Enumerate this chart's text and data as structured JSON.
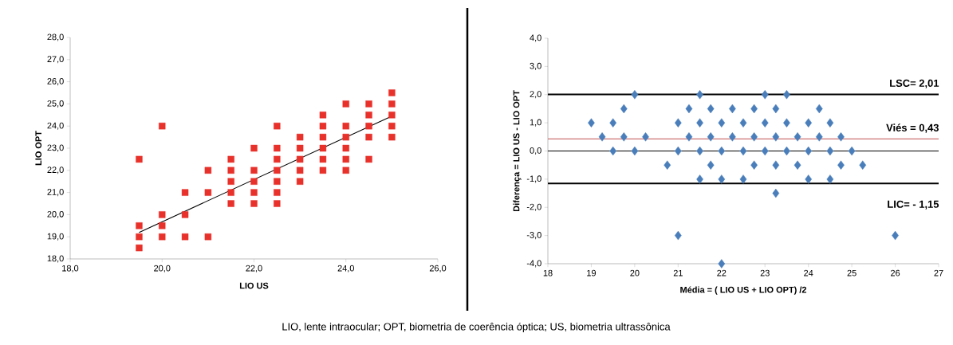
{
  "chart_data": [
    {
      "type": "scatter",
      "xlabel": "LIO US",
      "ylabel": "LIO OPT",
      "xlim": [
        18,
        26
      ],
      "ylim": [
        18,
        28
      ],
      "xticks": [
        {
          "value": 18,
          "label": "18,0"
        },
        {
          "value": 20,
          "label": "20,0"
        },
        {
          "value": 22,
          "label": "22,0"
        },
        {
          "value": 24,
          "label": "24,0"
        },
        {
          "value": 26,
          "label": "26,0"
        }
      ],
      "yticks": [
        {
          "value": 18,
          "label": "18,0"
        },
        {
          "value": 19,
          "label": "19,0"
        },
        {
          "value": 20,
          "label": "20,0"
        },
        {
          "value": 21,
          "label": "21,0"
        },
        {
          "value": 22,
          "label": "22,0"
        },
        {
          "value": 23,
          "label": "23,0"
        },
        {
          "value": 24,
          "label": "24,0"
        },
        {
          "value": 25,
          "label": "25,0"
        },
        {
          "value": 26,
          "label": "26,0"
        },
        {
          "value": 27,
          "label": "27,0"
        },
        {
          "value": 28,
          "label": "28,0"
        }
      ],
      "grid": false,
      "marker": "square",
      "annotations": [
        "LIO, lente intraocular; OPT, biometria de coerência óptica; US, biometria ultrassônica"
      ],
      "series": [
        {
          "color": "#e8312a",
          "x": [
            19.5,
            19.5,
            19.5,
            19.5,
            20,
            20,
            20,
            20,
            20.5,
            20.5,
            20.5,
            21,
            21,
            21,
            21.5,
            21.5,
            21.5,
            21.5,
            21.5,
            22,
            22,
            22,
            22,
            22,
            22.5,
            22.5,
            22.5,
            22.5,
            22.5,
            22.5,
            22.5,
            23,
            23,
            23,
            23,
            23,
            23.5,
            23.5,
            23.5,
            23.5,
            23.5,
            23.5,
            24,
            24,
            24,
            24,
            24,
            24,
            24.5,
            24.5,
            24.5,
            24.5,
            24.5,
            25,
            25,
            25,
            25,
            25
          ],
          "values": [
            22.5,
            19.5,
            19,
            18.5,
            24,
            20,
            19.5,
            19,
            21,
            20,
            19,
            22,
            21,
            19,
            22.5,
            22,
            21.5,
            21,
            20.5,
            23,
            22,
            21.5,
            21,
            20.5,
            24,
            23,
            22.5,
            22,
            21.5,
            21,
            20.5,
            23.5,
            23,
            22.5,
            22,
            21.5,
            24.5,
            24,
            23.5,
            23,
            22.5,
            22,
            25,
            24,
            23.5,
            23,
            22.5,
            22,
            25,
            24.5,
            24,
            23.5,
            22.5,
            25.5,
            25,
            24.5,
            24,
            23.5
          ]
        },
        {
          "type": "line",
          "color": "#000000",
          "marker": "none",
          "line_style": "solid",
          "x": [
            19.5,
            25.0
          ],
          "values": [
            19.2,
            24.45
          ]
        }
      ]
    },
    {
      "type": "scatter",
      "xlabel": "Média = ( LIO US + LIO OPT) /2",
      "ylabel": "Diferença = LIO US - LIO OPT",
      "xlim": [
        18,
        27
      ],
      "ylim": [
        -4,
        4
      ],
      "xticks": [
        18,
        19,
        20,
        21,
        22,
        23,
        24,
        25,
        26,
        27
      ],
      "yticks": [
        {
          "value": -4,
          "label": "-4,0"
        },
        {
          "value": -3,
          "label": "-3,0"
        },
        {
          "value": -2,
          "label": "-2,0"
        },
        {
          "value": -1,
          "label": "-1,0"
        },
        {
          "value": 0,
          "label": "0,0"
        },
        {
          "value": 1,
          "label": "1,0"
        },
        {
          "value": 2,
          "label": "2,0"
        },
        {
          "value": 3,
          "label": "3,0"
        },
        {
          "value": 4,
          "label": "4,0"
        }
      ],
      "grid": false,
      "marker": "diamond",
      "ref_lines": [
        {
          "axis": "y",
          "value": 2.01,
          "label": "LSC= 2,01",
          "color": "#000000",
          "line_style": "solid"
        },
        {
          "axis": "y",
          "value": 0.43,
          "label": "Viés = 0,43",
          "color": "#c0504d",
          "line_style": "solid"
        },
        {
          "axis": "y",
          "value": 0,
          "color": "#000000",
          "line_style": "solid"
        },
        {
          "axis": "y",
          "value": -1.15,
          "label": "LIC= - 1,15",
          "color": "#000000",
          "line_style": "solid"
        }
      ],
      "series": [
        {
          "color": "#4a7ebb",
          "x": [
            20,
            21.5,
            23,
            23.5,
            19.75,
            21.25,
            21.75,
            22.25,
            22.75,
            23.25,
            24.25,
            19,
            19.5,
            21,
            21.5,
            22,
            22.5,
            23,
            23.5,
            24,
            24.5,
            19.25,
            19.75,
            20.25,
            21.25,
            21.75,
            22.25,
            22.75,
            23.25,
            23.75,
            24.25,
            24.75,
            19.5,
            20,
            21,
            21.5,
            22,
            22.5,
            23,
            23.5,
            24,
            24.5,
            25,
            20.75,
            21.75,
            22.75,
            23.25,
            23.75,
            24.75,
            25.25,
            21.5,
            22,
            22.5,
            24,
            24.5,
            23.25,
            21,
            26,
            22
          ],
          "values": [
            2,
            2,
            2,
            2,
            1.5,
            1.5,
            1.5,
            1.5,
            1.5,
            1.5,
            1.5,
            1,
            1,
            1,
            1,
            1,
            1,
            1,
            1,
            1,
            1,
            0.5,
            0.5,
            0.5,
            0.5,
            0.5,
            0.5,
            0.5,
            0.5,
            0.5,
            0.5,
            0.5,
            0,
            0,
            0,
            0,
            0,
            0,
            0,
            0,
            0,
            0,
            0,
            -0.5,
            -0.5,
            -0.5,
            -0.5,
            -0.5,
            -0.5,
            -0.5,
            -1,
            -1,
            -1,
            -1,
            -1,
            -1.5,
            -3,
            -3,
            -4
          ]
        }
      ]
    }
  ]
}
